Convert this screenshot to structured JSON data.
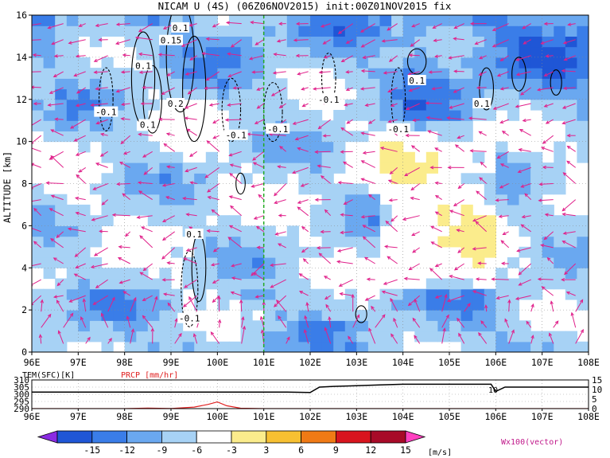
{
  "title": "NICAM U (4S) (06Z06NOV2015) init:00Z01NOV2015 fix",
  "chart_data": [
    {
      "type": "heatmap",
      "subtype": "vertical cross-section (shaded U, contours W, vectors U/Wx100)",
      "title": "NICAM U (4S) (06Z06NOV2015) init:00Z01NOV2015 fix",
      "xlabel": "",
      "ylabel": "ALTITUDE [km]",
      "x_ticks": [
        "96E",
        "97E",
        "98E",
        "99E",
        "100E",
        "101E",
        "102E",
        "103E",
        "104E",
        "105E",
        "106E",
        "107E",
        "108E"
      ],
      "xlim": [
        96,
        108
      ],
      "y_ticks": [
        "0",
        "2",
        "4",
        "6",
        "8",
        "10",
        "12",
        "14",
        "16"
      ],
      "ylim": [
        0,
        16
      ],
      "grid": "dotted",
      "reference_line_lon": 101,
      "reference_line_color": "#22aa22",
      "contour_labels": [
        {
          "text": "0.1",
          "lon": 98.4,
          "alt": 13.6
        },
        {
          "text": "0.1",
          "lon": 99.2,
          "alt": 15.4
        },
        {
          "text": "0.15",
          "lon": 99.0,
          "alt": 14.8
        },
        {
          "text": "-0.1",
          "lon": 97.6,
          "alt": 11.4
        },
        {
          "text": "0.1",
          "lon": 98.5,
          "alt": 10.8
        },
        {
          "text": "0.2",
          "lon": 99.1,
          "alt": 11.8
        },
        {
          "text": "-0.1",
          "lon": 100.4,
          "alt": 10.3
        },
        {
          "text": "-0.1",
          "lon": 101.3,
          "alt": 10.6
        },
        {
          "text": "-0.1",
          "lon": 102.4,
          "alt": 12.0
        },
        {
          "text": "-0.1",
          "lon": 103.9,
          "alt": 10.6
        },
        {
          "text": "0.1",
          "lon": 104.3,
          "alt": 12.9
        },
        {
          "text": "0.1",
          "lon": 105.7,
          "alt": 11.8
        },
        {
          "text": "0.1",
          "lon": 99.5,
          "alt": 5.6
        },
        {
          "text": "-0.1",
          "lon": 99.4,
          "alt": 1.6
        }
      ]
    },
    {
      "type": "line",
      "series": [
        {
          "name": "TEM(SFC)[K]",
          "color": "#000000",
          "x": [
            96,
            97,
            98,
            99,
            100,
            101,
            101.5,
            102,
            102.2,
            102.5,
            103,
            103.5,
            104,
            105,
            105.9,
            106,
            106.2,
            107,
            108
          ],
          "values": [
            301.5,
            301.5,
            301.5,
            301.5,
            301.5,
            301.5,
            301.5,
            301.2,
            305,
            305.5,
            306,
            306.5,
            307,
            307,
            307,
            302,
            305,
            305,
            305
          ]
        },
        {
          "name": "PRCP [mm/hr]",
          "color": "#e02020",
          "x": [
            96,
            98,
            98.5,
            99,
            99.5,
            99.8,
            100,
            100.2,
            100.5,
            101,
            108
          ],
          "values": [
            0,
            0,
            0.3,
            0.1,
            0.8,
            2.2,
            3.5,
            1.5,
            0.2,
            0,
            0
          ]
        }
      ],
      "xlim": [
        96,
        108
      ],
      "x_ticks": [
        "96E",
        "97E",
        "98E",
        "99E",
        "100E",
        "101E",
        "102E",
        "103E",
        "104E",
        "105E",
        "106E",
        "107E",
        "108E"
      ],
      "left_axis": {
        "label": "TEM(SFC)[K]",
        "ticks": [
          "310",
          "305",
          "300",
          "295",
          "290"
        ],
        "ylim": [
          290,
          310
        ]
      },
      "right_axis": {
        "label": "PRCP [mm/hr]",
        "ticks": [
          "15",
          "10",
          "5",
          "0"
        ],
        "ylim": [
          0,
          15
        ]
      },
      "annotation": "10"
    }
  ],
  "colorbar": {
    "levels": [
      "-15",
      "-12",
      "-9",
      "-6",
      "-3",
      "3",
      "6",
      "9",
      "12",
      "15"
    ],
    "colors": [
      "#8a2be2",
      "#1f56d6",
      "#3a7de8",
      "#6aa8f0",
      "#a7d2f5",
      "#ffffff",
      "#fbec8c",
      "#f7c032",
      "#f07a15",
      "#d8141e",
      "#a80a28",
      "#ff40c0"
    ],
    "unit": "[m/s]",
    "vector_label": "Wx100(vector)"
  },
  "colors": {
    "vector": "#e0208a",
    "reference_line": "#22aa22"
  }
}
